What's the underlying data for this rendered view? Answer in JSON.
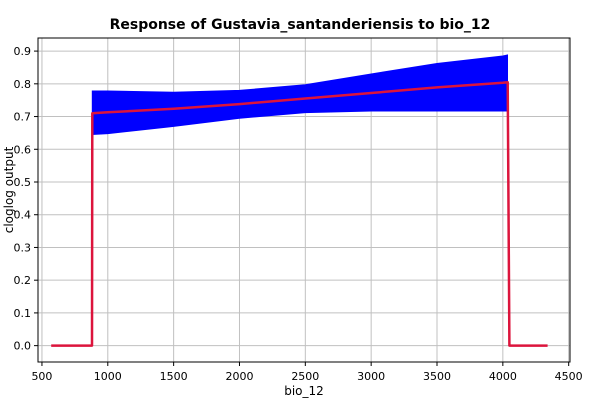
{
  "chart_data": {
    "type": "line",
    "title": "Response of Gustavia_santanderiensis to bio_12",
    "xlabel": "bio_12",
    "ylabel": "cloglog output",
    "xlim": [
      470,
      4510
    ],
    "ylim": [
      -0.05,
      0.94
    ],
    "xticks": [
      500,
      1000,
      1500,
      2000,
      2500,
      3000,
      3500,
      4000,
      4500
    ],
    "yticks": [
      0.0,
      0.1,
      0.2,
      0.3,
      0.4,
      0.5,
      0.6,
      0.7,
      0.8,
      0.9
    ],
    "xtick_labels": [
      "500",
      "1000",
      "1500",
      "2000",
      "2500",
      "3000",
      "3500",
      "4000",
      "4500"
    ],
    "ytick_labels": [
      "0.0",
      "0.1",
      "0.2",
      "0.3",
      "0.4",
      "0.5",
      "0.6",
      "0.7",
      "0.8",
      "0.9"
    ],
    "grid": true,
    "colors": {
      "mean": "#dc143c",
      "band": "#0000ff"
    },
    "series": [
      {
        "role": "mean",
        "x": [
          570,
          880,
          882,
          1000,
          1500,
          2000,
          2500,
          3000,
          3500,
          4000,
          4035,
          4037,
          4050,
          4340
        ],
        "y": [
          0.0,
          0.0,
          0.71,
          0.713,
          0.724,
          0.738,
          0.755,
          0.772,
          0.789,
          0.803,
          0.805,
          0.805,
          0.0,
          0.0
        ]
      },
      {
        "role": "band",
        "x": [
          882,
          1000,
          1500,
          2000,
          2500,
          3000,
          3500,
          4000,
          4035
        ],
        "upper": [
          0.778,
          0.778,
          0.774,
          0.78,
          0.797,
          0.83,
          0.862,
          0.885,
          0.888
        ],
        "lower": [
          0.645,
          0.648,
          0.67,
          0.695,
          0.712,
          0.717,
          0.717,
          0.717,
          0.717
        ]
      }
    ]
  }
}
